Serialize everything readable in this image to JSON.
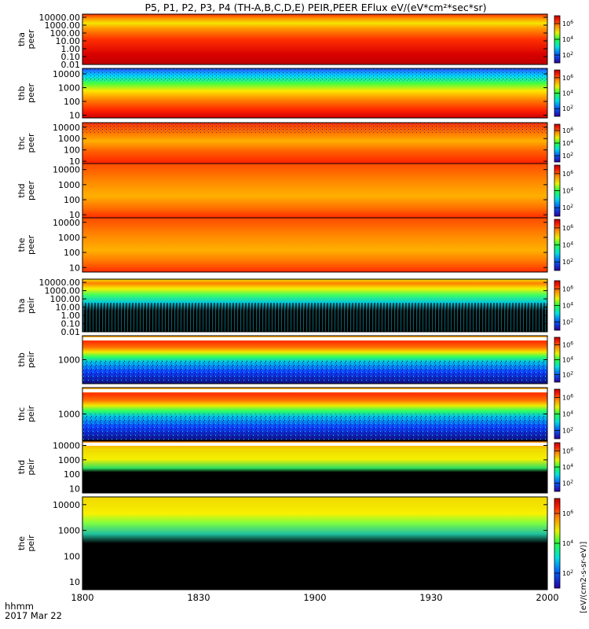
{
  "title": "P5, P1, P2, P3, P4 (TH-A,B,C,D,E) PEIR,PEER EFlux eV/(eV*cm²*sec*sr)",
  "xaxis": {
    "label_line1": "hhmm",
    "label_line2": "2017 Mar 22",
    "ticks": [
      "1800",
      "1830",
      "1900",
      "1930",
      "2000"
    ],
    "minutes_range": [
      0,
      120
    ],
    "tick_minutes": [
      0,
      30,
      60,
      90,
      120
    ]
  },
  "colorbar_label_lower": "[eV/(cm2-s-sr-eV)]",
  "colorbar_exponents": [
    "2",
    "4",
    "6"
  ],
  "chart_data": {
    "type": "heatmap",
    "x_units": "UT hhmm",
    "z_units": "eV/(eV*cm²*sec*sr)",
    "colorbar_range_log10": [
      1,
      7
    ],
    "panels": [
      {
        "id": "tha_peer",
        "ylabel1": "tha",
        "ylabel2": "peer",
        "ytick_labels": [
          "10000.00",
          "1000.00",
          "100.00",
          "10.00",
          "1.00",
          "0.10",
          "0.01"
        ],
        "ytick_log10": [
          4,
          3,
          2,
          1,
          0,
          -1,
          -2
        ],
        "ylim_log10": [
          -2,
          4.4
        ]
      },
      {
        "id": "thb_peer",
        "ylabel1": "thb",
        "ylabel2": "peer",
        "ytick_labels": [
          "10000",
          "1000",
          "100",
          "10"
        ],
        "ytick_log10": [
          4,
          3,
          2,
          1
        ],
        "ylim_log10": [
          0.8,
          4.4
        ]
      },
      {
        "id": "thc_peer",
        "ylabel1": "thc",
        "ylabel2": "peer",
        "ytick_labels": [
          "10000",
          "1000",
          "100",
          "10"
        ],
        "ytick_log10": [
          4,
          3,
          2,
          1
        ],
        "ylim_log10": [
          0.8,
          4.4
        ]
      },
      {
        "id": "thd_peer",
        "ylabel1": "thd",
        "ylabel2": "peer",
        "ytick_labels": [
          "10000",
          "1000",
          "100",
          "10"
        ],
        "ytick_log10": [
          4,
          3,
          2,
          1
        ],
        "ylim_log10": [
          0.8,
          4.4
        ]
      },
      {
        "id": "the_peer",
        "ylabel1": "the",
        "ylabel2": "peer",
        "ytick_labels": [
          "10000",
          "1000",
          "100",
          "10"
        ],
        "ytick_log10": [
          4,
          3,
          2,
          1
        ],
        "ylim_log10": [
          0.7,
          4.3
        ]
      },
      {
        "id": "tha_peir",
        "ylabel1": "tha",
        "ylabel2": "peir",
        "ytick_labels": [
          "10000.00",
          "1000.00",
          "100.00",
          "10.00",
          "1.00",
          "0.10",
          "0.01"
        ],
        "ytick_log10": [
          4,
          3,
          2,
          1,
          0,
          -1,
          -2
        ],
        "ylim_log10": [
          -2,
          4.4
        ]
      },
      {
        "id": "thb_peir",
        "ylabel1": "thb",
        "ylabel2": "peir",
        "ytick_labels": [
          "1000"
        ],
        "ytick_log10": [
          3
        ],
        "ylim_log10": [
          1.6,
          4.4
        ]
      },
      {
        "id": "thc_peir",
        "ylabel1": "thc",
        "ylabel2": "peir",
        "ytick_labels": [
          "1000"
        ],
        "ytick_log10": [
          3
        ],
        "ylim_log10": [
          1.6,
          4.4
        ]
      },
      {
        "id": "thd_peir",
        "ylabel1": "thd",
        "ylabel2": "peir",
        "ytick_labels": [
          "10000",
          "1000",
          "100",
          "10"
        ],
        "ytick_log10": [
          4,
          3,
          2,
          1
        ],
        "ylim_log10": [
          0.7,
          4.3
        ]
      },
      {
        "id": "the_peir",
        "ylabel1": "the",
        "ylabel2": "peir",
        "ytick_labels": [
          "10000",
          "1000",
          "100",
          "10"
        ],
        "ytick_log10": [
          4,
          3,
          2,
          1
        ],
        "ylim_log10": [
          0.7,
          4.3
        ]
      }
    ]
  }
}
